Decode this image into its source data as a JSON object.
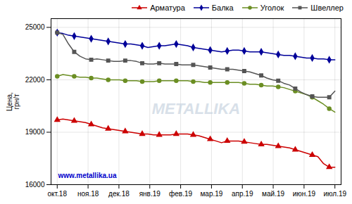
{
  "chart_data": {
    "type": "line",
    "ylabel": "Цена,\nгрн/т",
    "x": [
      0,
      0.183673,
      0.367347,
      0.55102,
      0.734694,
      0.918367,
      1.102041,
      1.285714,
      1.469388,
      1.653061,
      1.836735,
      2.020408,
      2.204082,
      2.387755,
      2.571429,
      2.755102,
      2.938776,
      3.122449,
      3.306122,
      3.489796,
      3.673469,
      3.857143,
      4.040816,
      4.22449,
      4.408163,
      4.591837,
      4.77551,
      4.959184,
      5.142857,
      5.326531,
      5.510204,
      5.693878,
      5.877551,
      6.061224,
      6.244898,
      6.428571,
      6.612245,
      6.795918,
      6.979592,
      7.163265,
      7.346939,
      7.530612,
      7.714286,
      7.897959,
      8.081633,
      8.265306,
      8.44898,
      8.632653,
      8.816327,
      9
    ],
    "xlim": [
      -0.2,
      9.2
    ],
    "xticks": [
      {
        "value": 0,
        "label": "окт.18"
      },
      {
        "value": 1,
        "label": "ноя.18"
      },
      {
        "value": 2,
        "label": "дек.18"
      },
      {
        "value": 3,
        "label": "янв.19"
      },
      {
        "value": 4,
        "label": "фев.19"
      },
      {
        "value": 5,
        "label": "мар.19"
      },
      {
        "value": 6,
        "label": "апр.19"
      },
      {
        "value": 7,
        "label": "май.19"
      },
      {
        "value": 8,
        "label": "июн.19"
      },
      {
        "value": 9,
        "label": "июл.19"
      }
    ],
    "ylim": [
      16000,
      25500
    ],
    "yticks": [
      16000,
      19000,
      22000,
      25000
    ],
    "grid": true,
    "legend": "upper right",
    "series": [
      {
        "name": "Арматура",
        "color": "#cc0000",
        "marker": "triangle",
        "values": [
          19700,
          19750,
          19700,
          19650,
          19600,
          19550,
          19450,
          19350,
          19250,
          19200,
          19150,
          19100,
          19050,
          19000,
          18950,
          18900,
          18900,
          18850,
          18850,
          18850,
          18850,
          18900,
          18900,
          18900,
          18850,
          18800,
          18700,
          18600,
          18500,
          18400,
          18500,
          18500,
          18500,
          18450,
          18400,
          18350,
          18300,
          18300,
          18250,
          18200,
          18150,
          18100,
          18000,
          17900,
          17800,
          17700,
          17600,
          17200,
          17000,
          17000
        ]
      },
      {
        "name": "Балка",
        "color": "#000099",
        "marker": "diamond",
        "values": [
          24700,
          24650,
          24550,
          24500,
          24450,
          24400,
          24350,
          24300,
          24250,
          24200,
          24150,
          24100,
          24050,
          24050,
          24000,
          23950,
          23850,
          23900,
          23950,
          23950,
          24000,
          24050,
          24000,
          23950,
          23850,
          23800,
          23750,
          23700,
          23650,
          23600,
          23650,
          23700,
          23700,
          23650,
          23600,
          23600,
          23600,
          23550,
          23500,
          23450,
          23400,
          23400,
          23350,
          23300,
          23250,
          23250,
          23200,
          23200,
          23150,
          23150
        ]
      },
      {
        "name": "Уголок",
        "color": "#6b8e23",
        "marker": "circle",
        "values": [
          22200,
          22300,
          22250,
          22200,
          22150,
          22150,
          22100,
          22100,
          22050,
          22000,
          22000,
          22000,
          21950,
          21950,
          21950,
          21900,
          21900,
          21900,
          21950,
          21950,
          21950,
          21950,
          21950,
          21950,
          21900,
          21900,
          21850,
          21850,
          21850,
          21850,
          21850,
          21850,
          21850,
          21800,
          21750,
          21750,
          21700,
          21650,
          21650,
          21600,
          21550,
          21450,
          21350,
          21250,
          21150,
          21000,
          20800,
          20600,
          20350,
          20150
        ]
      },
      {
        "name": "Швеллер",
        "color": "#555555",
        "marker": "square",
        "values": [
          24700,
          24600,
          24050,
          23600,
          23350,
          23200,
          23150,
          23200,
          23150,
          23100,
          23050,
          23050,
          23100,
          23100,
          23050,
          22950,
          22900,
          22900,
          22950,
          22900,
          22900,
          22900,
          22850,
          22850,
          22850,
          22800,
          22750,
          22700,
          22650,
          22600,
          22600,
          22600,
          22550,
          22500,
          22450,
          22350,
          22250,
          22100,
          22000,
          21950,
          21800,
          21700,
          21500,
          21300,
          21150,
          21050,
          21000,
          21000,
          21000,
          21350
        ]
      }
    ],
    "annotations": [
      {
        "text": "METALLIKA",
        "color": "#c8d4e0"
      },
      {
        "text": "www.metallika.ua",
        "color": "#0000cc"
      }
    ]
  }
}
